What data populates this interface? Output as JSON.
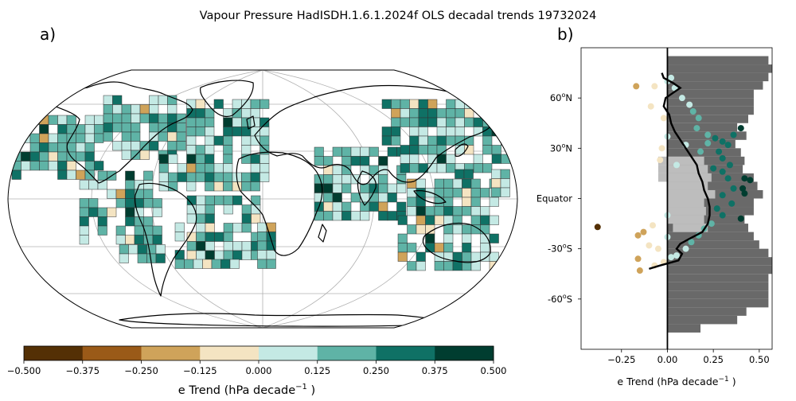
{
  "title": "Vapour Pressure HadISDH.1.6.1.2024f OLS decadal trends 19732024",
  "panel_a": {
    "label": "a)"
  },
  "panel_b": {
    "label": "b)"
  },
  "colorbar": {
    "label_text": "e Trend (hPa decade",
    "label_sup": "−1",
    "label_end": " )",
    "ticks": [
      "−0.500",
      "−0.375",
      "−0.250",
      "−0.125",
      "0.000",
      "0.125",
      "0.250",
      "0.375",
      "0.500"
    ],
    "colors": [
      "#543005",
      "#9a5a18",
      "#cfa35a",
      "#f4e4c2",
      "#c4e9e4",
      "#5fb3a6",
      "#0f7165",
      "#003d30"
    ]
  },
  "chart_data": [
    {
      "type": "heatmap",
      "panel": "a",
      "description_source": "gridded map of decadal trends (Robinson projection)",
      "colorbar_range": [
        -0.5,
        0.5
      ],
      "bins": [
        -0.5,
        -0.375,
        -0.25,
        -0.125,
        0.0,
        0.125,
        0.25,
        0.375,
        0.5
      ]
    },
    {
      "type": "scatter",
      "panel": "b",
      "xlabel_text": "e Trend (hPa decade",
      "xlabel_sup": "−1",
      "xlabel_end": " )",
      "xlim": [
        -0.47,
        0.57
      ],
      "ylim": [
        -90,
        90
      ],
      "xticks": [
        -0.25,
        0.0,
        0.25,
        0.5
      ],
      "xtick_labels": [
        "−0.25",
        "0.00",
        "0.25",
        "0.50"
      ],
      "yticks": [
        {
          "value": 60,
          "num": "60",
          "deg": "o",
          "hemi": "N"
        },
        {
          "value": 30,
          "num": "30",
          "deg": "o",
          "hemi": "N"
        },
        {
          "value": 0,
          "label": "Equator"
        },
        {
          "value": -30,
          "num": "-30",
          "deg": "o",
          "hemi": "S"
        },
        {
          "value": -60,
          "num": "-60",
          "deg": "o",
          "hemi": "S"
        }
      ],
      "zonal_mean": {
        "lat": [
          -42,
          -40,
          -37,
          -33,
          -30,
          -27,
          -24,
          -20,
          -15,
          -10,
          -5,
          0,
          5,
          10,
          15,
          20,
          25,
          30,
          35,
          40,
          45,
          50,
          55,
          60,
          63,
          66,
          69,
          72,
          75
        ],
        "trend": [
          -0.1,
          -0.04,
          0.06,
          0.08,
          0.05,
          0.07,
          0.12,
          0.19,
          0.22,
          0.23,
          0.23,
          0.22,
          0.2,
          0.19,
          0.17,
          0.16,
          0.13,
          0.1,
          0.07,
          0.04,
          0.02,
          0.01,
          -0.02,
          -0.01,
          0.03,
          0.07,
          0.03,
          -0.02,
          -0.03
        ]
      },
      "missing_fraction_bars": [
        {
          "lat": 82.5,
          "w": 0.55
        },
        {
          "lat": 77.5,
          "w": 0.57
        },
        {
          "lat": 72.5,
          "w": 0.55
        },
        {
          "lat": 67.5,
          "w": 0.52
        },
        {
          "lat": 62.5,
          "w": 0.47
        },
        {
          "lat": 57.5,
          "w": 0.47
        },
        {
          "lat": 52.5,
          "w": 0.47
        },
        {
          "lat": 47.5,
          "w": 0.44
        },
        {
          "lat": 42.5,
          "w": 0.38
        },
        {
          "lat": 37.5,
          "w": 0.43
        },
        {
          "lat": 32.5,
          "w": 0.37
        },
        {
          "lat": 27.5,
          "w": 0.4
        },
        {
          "lat": 22.5,
          "w": 0.42
        },
        {
          "lat": 17.5,
          "w": 0.41
        },
        {
          "lat": 12.5,
          "w": 0.47
        },
        {
          "lat": 7.5,
          "w": 0.49
        },
        {
          "lat": 2.5,
          "w": 0.52
        },
        {
          "lat": -2.5,
          "w": 0.47
        },
        {
          "lat": -7.5,
          "w": 0.47
        },
        {
          "lat": -12.5,
          "w": 0.42
        },
        {
          "lat": -17.5,
          "w": 0.44
        },
        {
          "lat": -22.5,
          "w": 0.47
        },
        {
          "lat": -27.5,
          "w": 0.5
        },
        {
          "lat": -32.5,
          "w": 0.55
        },
        {
          "lat": -37.5,
          "w": 0.57
        },
        {
          "lat": -42.5,
          "w": 0.57
        },
        {
          "lat": -47.5,
          "w": 0.55
        },
        {
          "lat": -52.5,
          "w": 0.55
        },
        {
          "lat": -57.5,
          "w": 0.55
        },
        {
          "lat": -62.5,
          "w": 0.55
        },
        {
          "lat": -67.5,
          "w": 0.43
        },
        {
          "lat": -72.5,
          "w": 0.38
        },
        {
          "lat": -77.5,
          "w": 0.18
        }
      ],
      "band_bars": [
        {
          "lat": 22.5,
          "x0": -0.05,
          "x1": 0.2
        },
        {
          "lat": 17.5,
          "x0": -0.05,
          "x1": 0.22
        },
        {
          "lat": 12.5,
          "x0": -0.05,
          "x1": 0.24
        },
        {
          "lat": 7.5,
          "x0": 0.0,
          "x1": 0.22
        },
        {
          "lat": 2.5,
          "x0": 0.0,
          "x1": 0.26
        },
        {
          "lat": -2.5,
          "x0": 0.0,
          "x1": 0.2
        },
        {
          "lat": -7.5,
          "x0": 0.0,
          "x1": 0.21
        },
        {
          "lat": -12.5,
          "x0": 0.0,
          "x1": 0.2
        },
        {
          "lat": -17.5,
          "x0": 0.03,
          "x1": 0.22
        }
      ],
      "points": [
        {
          "x": -0.38,
          "y": -17
        },
        {
          "x": -0.17,
          "y": 67
        },
        {
          "x": -0.16,
          "y": -36
        },
        {
          "x": -0.15,
          "y": -43
        },
        {
          "x": -0.16,
          "y": -22
        },
        {
          "x": -0.13,
          "y": -20
        },
        {
          "x": -0.07,
          "y": 67
        },
        {
          "x": -0.09,
          "y": 55
        },
        {
          "x": -0.03,
          "y": 30
        },
        {
          "x": -0.04,
          "y": 23
        },
        {
          "x": -0.02,
          "y": 48
        },
        {
          "x": 0.0,
          "y": 37
        },
        {
          "x": 0.0,
          "y": -10
        },
        {
          "x": 0.0,
          "y": 70
        },
        {
          "x": 0.02,
          "y": 72
        },
        {
          "x": 0.04,
          "y": 66
        },
        {
          "x": 0.08,
          "y": 60
        },
        {
          "x": 0.12,
          "y": 56
        },
        {
          "x": 0.14,
          "y": 52
        },
        {
          "x": 0.17,
          "y": 48
        },
        {
          "x": 0.16,
          "y": 42
        },
        {
          "x": 0.22,
          "y": 38
        },
        {
          "x": 0.26,
          "y": 36
        },
        {
          "x": 0.3,
          "y": 34
        },
        {
          "x": 0.33,
          "y": 32
        },
        {
          "x": 0.36,
          "y": 38
        },
        {
          "x": 0.4,
          "y": 42
        },
        {
          "x": 0.28,
          "y": 28
        },
        {
          "x": 0.3,
          "y": 24
        },
        {
          "x": 0.34,
          "y": 20
        },
        {
          "x": 0.3,
          "y": 16
        },
        {
          "x": 0.33,
          "y": 12
        },
        {
          "x": 0.42,
          "y": 12
        },
        {
          "x": 0.45,
          "y": 11
        },
        {
          "x": 0.36,
          "y": 6
        },
        {
          "x": 0.41,
          "y": 6
        },
        {
          "x": 0.42,
          "y": 3
        },
        {
          "x": 0.3,
          "y": 2
        },
        {
          "x": 0.35,
          "y": -3
        },
        {
          "x": 0.4,
          "y": -12
        },
        {
          "x": 0.3,
          "y": -10
        },
        {
          "x": 0.27,
          "y": -6
        },
        {
          "x": 0.24,
          "y": -15
        },
        {
          "x": 0.2,
          "y": -18
        },
        {
          "x": 0.17,
          "y": -22
        },
        {
          "x": 0.13,
          "y": -26
        },
        {
          "x": 0.1,
          "y": -30
        },
        {
          "x": 0.05,
          "y": -34
        },
        {
          "x": 0.02,
          "y": -35
        },
        {
          "x": -0.02,
          "y": -38
        },
        {
          "x": -0.07,
          "y": -40
        },
        {
          "x": -0.1,
          "y": -28
        },
        {
          "x": -0.05,
          "y": -30
        },
        {
          "x": 0.0,
          "y": -23
        },
        {
          "x": -0.08,
          "y": -16
        },
        {
          "x": 0.05,
          "y": 20
        },
        {
          "x": 0.1,
          "y": 32
        },
        {
          "x": 0.18,
          "y": 28
        },
        {
          "x": 0.22,
          "y": 33
        },
        {
          "x": 0.25,
          "y": 18
        }
      ]
    }
  ]
}
